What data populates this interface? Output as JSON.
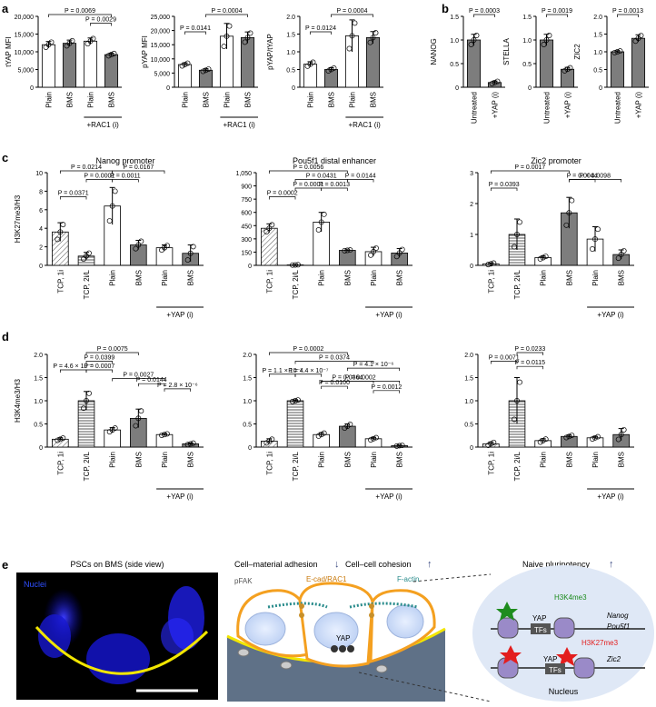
{
  "panel_letters": [
    "a",
    "b",
    "c",
    "d",
    "e"
  ],
  "colors": {
    "plain": "#ffffff",
    "bms": "#5a5a5a",
    "dark": "#7d7d7d",
    "accent_orange": "#f4a020",
    "teal": "#2a8c8c"
  },
  "chart_data": [
    {
      "type": "bar",
      "panel": "a1",
      "ylabel": "tYAP MFI",
      "ylim": [
        0,
        20000
      ],
      "yticks": [
        "0",
        "5,000",
        "10,000",
        "15,000",
        "20,000"
      ],
      "categories": [
        "Plain",
        "BMS",
        "Plain",
        "BMS"
      ],
      "values": [
        12000,
        12400,
        13000,
        9200
      ],
      "errors": [
        900,
        900,
        900,
        400
      ],
      "fills": [
        "plain",
        "bms",
        "plain",
        "bms"
      ],
      "group_label": "+RAC1 (i)",
      "brackets": [
        {
          "text": "P = 0.0069"
        },
        {
          "text": "P = 0.0029"
        }
      ]
    },
    {
      "type": "bar",
      "panel": "a2",
      "ylabel": "pYAP MFI",
      "ylim": [
        0,
        25000
      ],
      "yticks": [
        "0",
        "5,000",
        "10,000",
        "15,000",
        "20,000",
        "25,000"
      ],
      "categories": [
        "Plain",
        "BMS",
        "Plain",
        "BMS"
      ],
      "values": [
        8000,
        6000,
        18000,
        17500
      ],
      "errors": [
        600,
        500,
        4500,
        2000
      ],
      "fills": [
        "plain",
        "bms",
        "plain",
        "bms"
      ],
      "group_label": "+RAC1 (i)",
      "brackets": [
        {
          "text": "P = 0.0004"
        },
        {
          "text": "P = 0.0141"
        }
      ]
    },
    {
      "type": "bar",
      "panel": "a3",
      "ylabel": "pYAP/tYAP",
      "ylim": [
        0,
        2.0
      ],
      "yticks": [
        "0",
        "0.5",
        "1.0",
        "1.5",
        "2.0"
      ],
      "categories": [
        "Plain",
        "BMS",
        "Plain",
        "BMS"
      ],
      "values": [
        0.65,
        0.5,
        1.45,
        1.4
      ],
      "errors": [
        0.07,
        0.05,
        0.45,
        0.17
      ],
      "fills": [
        "plain",
        "bms",
        "plain",
        "bms"
      ],
      "group_label": "+RAC1 (i)",
      "brackets": [
        {
          "text": "P = 0.0004"
        },
        {
          "text": "P = 0.0124"
        }
      ]
    },
    {
      "type": "bar",
      "panel": "b1",
      "ylabel": "NANOG",
      "ylim": [
        0,
        1.5
      ],
      "yticks": [
        "0",
        "0.5",
        "1.0",
        "1.5"
      ],
      "categories": [
        "Untreated",
        "+YAP (i)"
      ],
      "values": [
        1.0,
        0.1
      ],
      "errors": [
        0.12,
        0.03
      ],
      "fills": [
        "bms",
        "bms"
      ],
      "brackets": [
        {
          "text": "P = 0.0003"
        }
      ]
    },
    {
      "type": "bar",
      "panel": "b2",
      "ylabel": "STELLA",
      "ylim": [
        0,
        1.5
      ],
      "yticks": [
        "0",
        "0.5",
        "1.0",
        "1.5"
      ],
      "categories": [
        "Untreated",
        "+YAP (i)"
      ],
      "values": [
        1.0,
        0.38
      ],
      "errors": [
        0.12,
        0.04
      ],
      "fills": [
        "bms",
        "bms"
      ],
      "brackets": [
        {
          "text": "P = 0.0019"
        }
      ]
    },
    {
      "type": "bar",
      "panel": "b3",
      "ylabel": "ZIC2",
      "ylim": [
        0,
        2.0
      ],
      "yticks": [
        "0",
        "0.5",
        "1.0",
        "1.5",
        "2.0"
      ],
      "categories": [
        "Untreated",
        "+YAP (i)"
      ],
      "values": [
        1.0,
        1.38
      ],
      "errors": [
        0.03,
        0.1
      ],
      "fills": [
        "bms",
        "bms"
      ],
      "brackets": [
        {
          "text": "P = 0.0013"
        }
      ]
    },
    {
      "type": "bar",
      "panel": "c1",
      "title": "Nanog promoter",
      "ylabel": "H3K27me3/H3",
      "ylim": [
        0,
        10
      ],
      "yticks": [
        "0",
        "2",
        "4",
        "6",
        "8",
        "10"
      ],
      "categories": [
        "TCP, 1i",
        "TCP, 2i/L",
        "Plain",
        "BMS",
        "Plain",
        "BMS"
      ],
      "values": [
        3.6,
        1.0,
        6.4,
        2.2,
        1.9,
        1.3
      ],
      "errors": [
        1.0,
        0.4,
        2.0,
        0.5,
        0.3,
        0.9
      ],
      "fills": [
        "hatch",
        "hlines",
        "plain",
        "bms",
        "plain",
        "bms"
      ],
      "group_label": "+YAP (i)",
      "brackets": [
        {
          "text": "P = 0.0214"
        },
        {
          "text": "P = 0.0167"
        },
        {
          "text": "P = 0.0001"
        },
        {
          "text": "P = 0.0011"
        },
        {
          "text": "P = 0.0371"
        }
      ]
    },
    {
      "type": "bar",
      "panel": "c2",
      "title": "Pou5f1 distal enhancer",
      "ylabel": "",
      "ylim": [
        0,
        1050
      ],
      "yticks": [
        "0",
        "150",
        "300",
        "450",
        "600",
        "750",
        "900",
        "1,050"
      ],
      "categories": [
        "TCP, 1i",
        "TCP, 2i/L",
        "Plain",
        "BMS",
        "Plain",
        "BMS"
      ],
      "values": [
        420,
        5,
        490,
        170,
        155,
        140
      ],
      "errors": [
        50,
        2,
        110,
        5,
        50,
        50
      ],
      "fills": [
        "hatch",
        "hlines",
        "plain",
        "bms",
        "plain",
        "bms"
      ],
      "group_label": "+YAP (i)",
      "brackets": [
        {
          "text": "P = 0.0056"
        },
        {
          "text": "P = 0.0431"
        },
        {
          "text": "P = 0.0144"
        },
        {
          "text": "P = 0.0001"
        },
        {
          "text": "P = 0.0013"
        },
        {
          "text": "P = 0.0002"
        }
      ]
    },
    {
      "type": "bar",
      "panel": "c3",
      "title": "Zic2 promoter",
      "ylabel": "",
      "ylim": [
        0,
        3
      ],
      "yticks": [
        "0",
        "1",
        "2",
        "3"
      ],
      "categories": [
        "TCP, 1i",
        "TCP, 2i/L",
        "Plain",
        "BMS",
        "Plain",
        "BMS"
      ],
      "values": [
        0.05,
        1.0,
        0.25,
        1.7,
        0.85,
        0.35
      ],
      "errors": [
        0.03,
        0.5,
        0.05,
        0.5,
        0.4,
        0.15
      ],
      "fills": [
        "hatch",
        "hlines",
        "plain",
        "bms",
        "plain",
        "bms"
      ],
      "group_label": "+YAP (i)",
      "brackets": [
        {
          "text": "P = 0.0017"
        },
        {
          "text": "P = 0.0044"
        },
        {
          "text": "P = 0.0098"
        },
        {
          "text": "P = 0.0393"
        }
      ]
    },
    {
      "type": "bar",
      "panel": "d1",
      "ylabel": "H3K4me3/H3",
      "ylim": [
        0,
        2.0
      ],
      "yticks": [
        "0",
        "0.5",
        "1.0",
        "1.5",
        "2.0"
      ],
      "categories": [
        "TCP, 1i",
        "TCP, 2i/L",
        "Plain",
        "BMS",
        "Plain",
        "BMS"
      ],
      "values": [
        0.17,
        1.0,
        0.37,
        0.62,
        0.27,
        0.07
      ],
      "errors": [
        0.03,
        0.2,
        0.05,
        0.2,
        0.02,
        0.02
      ],
      "fills": [
        "hatch",
        "hlines",
        "plain",
        "bms",
        "plain",
        "bms"
      ],
      "group_label": "+YAP (i)",
      "brackets": [
        {
          "text": "P = 0.0075"
        },
        {
          "text": "P = 0.0399"
        },
        {
          "text": "P = 4.6 × 10⁻⁵"
        },
        {
          "text": "P = 0.0007"
        },
        {
          "text": "P = 0.0027"
        },
        {
          "text": "P = 0.0144"
        },
        {
          "text": "P = 2.8 × 10⁻⁶"
        }
      ]
    },
    {
      "type": "bar",
      "panel": "d2",
      "ylabel": "",
      "ylim": [
        0,
        2.0
      ],
      "yticks": [
        "0",
        "0.5",
        "1.0",
        "1.5",
        "2.0"
      ],
      "categories": [
        "TCP, 1i",
        "TCP, 2i/L",
        "Plain",
        "BMS",
        "Plain",
        "BMS"
      ],
      "values": [
        0.13,
        1.0,
        0.27,
        0.45,
        0.18,
        0.03
      ],
      "errors": [
        0.05,
        0.02,
        0.04,
        0.05,
        0.03,
        0.01
      ],
      "fills": [
        "hatch",
        "hlines",
        "plain",
        "bms",
        "plain",
        "bms"
      ],
      "group_label": "+YAP (i)",
      "brackets": [
        {
          "text": "P = 0.0002"
        },
        {
          "text": "P = 0.0374"
        },
        {
          "text": "P = 4.1 × 10⁻⁶"
        },
        {
          "text": "P = 1.1 × 10⁻⁷"
        },
        {
          "text": "P = 4.4 × 10⁻⁷"
        },
        {
          "text": "P = 0.0364"
        },
        {
          "text": "P = 0.0100"
        },
        {
          "text": "P = 0.0002"
        },
        {
          "text": "P = 0.0012"
        }
      ]
    },
    {
      "type": "bar",
      "panel": "d3",
      "ylabel": "",
      "ylim": [
        0,
        2.0
      ],
      "yticks": [
        "0",
        "0.5",
        "1.0",
        "1.5",
        "2.0"
      ],
      "categories": [
        "TCP, 1i",
        "TCP, 2i/L",
        "Plain",
        "BMS",
        "Plain",
        "BMS"
      ],
      "values": [
        0.07,
        1.0,
        0.14,
        0.23,
        0.2,
        0.27
      ],
      "errors": [
        0.04,
        0.5,
        0.04,
        0.03,
        0.03,
        0.13
      ],
      "fills": [
        "hatch",
        "hlines",
        "plain",
        "bms",
        "plain",
        "bms"
      ],
      "group_label": "+YAP (i)",
      "brackets": [
        {
          "text": "P = 0.0233"
        },
        {
          "text": "P = 0.0071"
        },
        {
          "text": "P = 0.0115"
        }
      ]
    }
  ],
  "panel_e": {
    "micro_title": "PSCs on BMS (side view)",
    "nuclei_label": "Nuclei",
    "adhesion": "Cell–material adhesion",
    "cohesion": "Cell–cell cohesion",
    "naive": "Naive pluripotency",
    "pfak": "pFAK",
    "ecad": "E-cad/RAC1",
    "factin": "F-actin",
    "yap": "YAP",
    "h3k4": "H3K4me3",
    "h3k27": "H3K27me3",
    "tfs": "TFs",
    "genes_top": [
      "Nanog",
      "Pou5f1"
    ],
    "gene_bottom": "Zic2",
    "nucleus": "Nucleus",
    "arrow_down": "↓",
    "arrow_up": "↑"
  }
}
